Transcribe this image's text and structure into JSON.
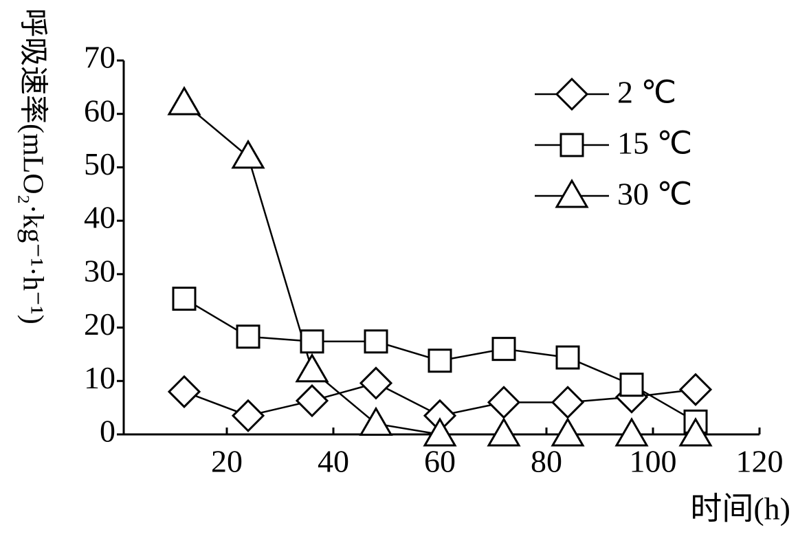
{
  "chart_data": {
    "type": "line",
    "y_label": "呼吸速率(mLO₂·kg⁻¹·h⁻¹)",
    "x_label": "时间(h)",
    "x": [
      12,
      24,
      36,
      48,
      60,
      72,
      84,
      96,
      108
    ],
    "series": [
      {
        "name": "2 ℃",
        "color": "#000000",
        "marker": "diamond",
        "values": [
          8,
          3.5,
          6.3,
          9.6,
          3.5,
          6,
          6,
          7,
          8.4
        ]
      },
      {
        "name": "15 ℃",
        "color": "#000000",
        "marker": "square",
        "values": [
          25.4,
          18.3,
          17.4,
          17.4,
          13.8,
          16,
          14.4,
          9.3,
          2.4
        ]
      },
      {
        "name": "30 ℃",
        "color": "#000000",
        "marker": "triangle",
        "values": [
          62,
          52,
          12,
          2,
          0,
          0,
          0,
          0,
          0
        ]
      }
    ],
    "xlim": [
      0,
      120
    ],
    "xticks": [
      20,
      40,
      60,
      80,
      100,
      120
    ],
    "ylim": [
      0,
      70
    ],
    "yticks": [
      0,
      10,
      20,
      30,
      40,
      50,
      60,
      70
    ],
    "legend": "upper right"
  }
}
